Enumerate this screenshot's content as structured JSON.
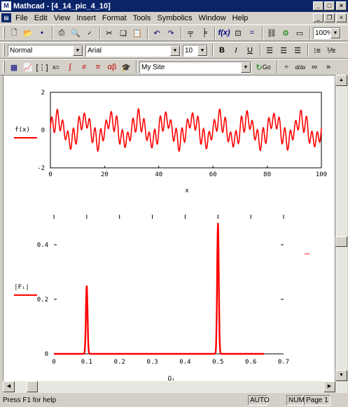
{
  "window": {
    "title": "Mathcad - [4_14_pic_4_10]",
    "app_icon": "mathcad-icon"
  },
  "menu": [
    "File",
    "Edit",
    "View",
    "Insert",
    "Format",
    "Tools",
    "Symbolics",
    "Window",
    "Help"
  ],
  "toolbar": {
    "zoom": "100%"
  },
  "format_bar": {
    "style": "Normal",
    "font": "Arial",
    "size": "10"
  },
  "math_bar": {
    "resource": "My Site",
    "go_label": "Go"
  },
  "plot1": {
    "ylabel": "f(x)",
    "xlabel": "x",
    "y_ticks": [
      "2",
      "0",
      "-2"
    ],
    "x_ticks": [
      "0",
      "20",
      "40",
      "60",
      "80",
      "100"
    ]
  },
  "plot2": {
    "ylabel": "|Fᵢ|",
    "xlabel": "Ωᵢ",
    "y_ticks": [
      "0.4",
      "0.2",
      "0"
    ],
    "x_ticks": [
      "0",
      "0.1",
      "0.2",
      "0.3",
      "0.4",
      "0.5",
      "0.6",
      "0.7"
    ]
  },
  "chart_data": [
    {
      "type": "line",
      "xlabel": "x",
      "ylabel": "f(x)",
      "xlim": [
        0,
        100
      ],
      "ylim": [
        -2,
        2
      ],
      "series": [
        {
          "x": [
            0,
            100
          ],
          "description": "oscillating signal",
          "color": "#ff0000"
        }
      ]
    },
    {
      "type": "line",
      "xlabel": "Ωᵢ",
      "ylabel": "|Fᵢ|",
      "xlim": [
        0,
        0.7
      ],
      "ylim": [
        0,
        0.5
      ],
      "peaks": [
        {
          "x": 0.1,
          "y": 0.25
        },
        {
          "x": 0.5,
          "y": 0.48
        }
      ],
      "series": [
        {
          "x_range": [
            0,
            0.64
          ],
          "color": "#ff0000"
        }
      ]
    }
  ],
  "status": {
    "hint": "Press F1 for help",
    "mode": "AUTO",
    "num": "NUM",
    "page": "Page 1"
  }
}
